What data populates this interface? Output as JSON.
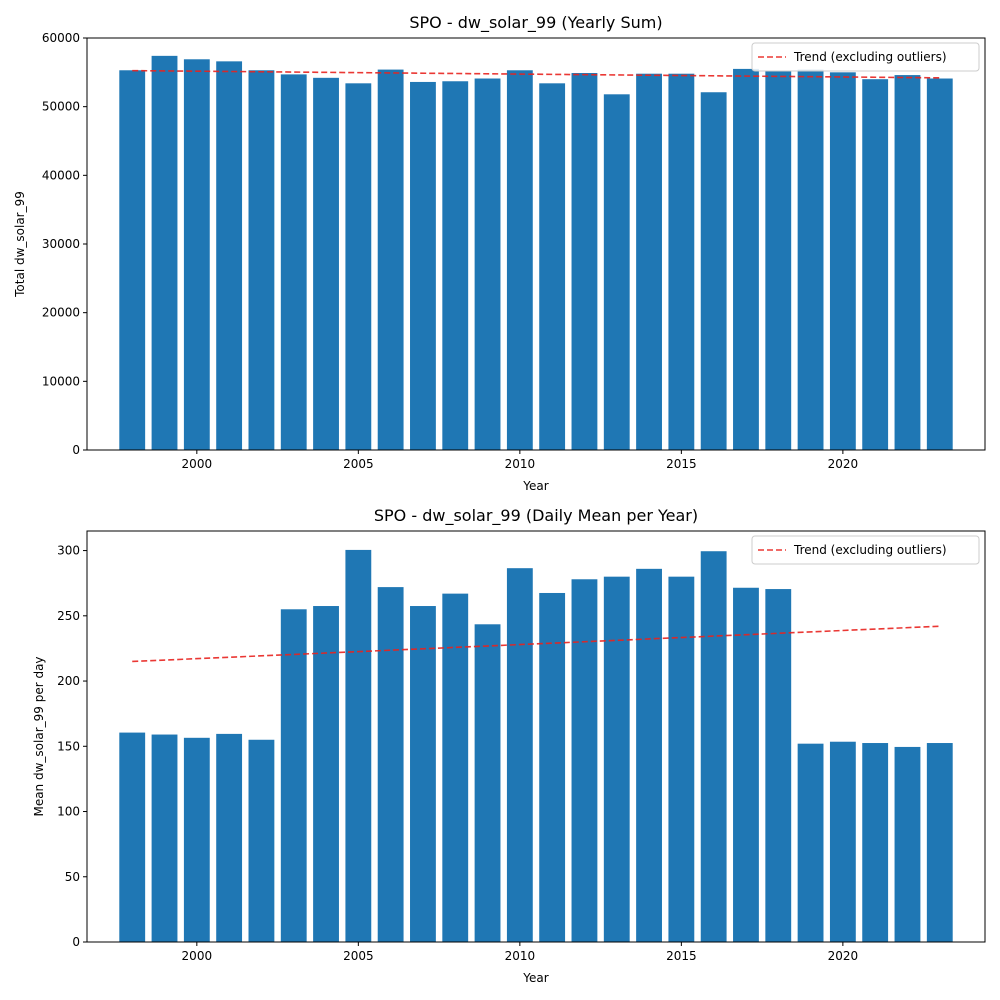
{
  "chart_data": [
    {
      "type": "bar",
      "title": "SPO - dw_solar_99 (Yearly Sum)",
      "xlabel": "Year",
      "ylabel": "Total dw_solar_99",
      "xlim": [
        1996.6,
        2024.4
      ],
      "ylim": [
        0,
        60000
      ],
      "xticks": [
        2000,
        2005,
        2010,
        2015,
        2020
      ],
      "yticks": [
        0,
        10000,
        20000,
        30000,
        40000,
        50000,
        60000
      ],
      "grid": false,
      "bar_color": "#1f77b4",
      "x": [
        1998,
        1999,
        2000,
        2001,
        2002,
        2003,
        2004,
        2005,
        2006,
        2007,
        2008,
        2009,
        2010,
        2011,
        2012,
        2013,
        2014,
        2015,
        2016,
        2017,
        2018,
        2019,
        2020,
        2021,
        2022,
        2023
      ],
      "values": [
        55300,
        57400,
        56900,
        56600,
        55300,
        54700,
        54200,
        53400,
        55400,
        53600,
        53700,
        54100,
        55300,
        53400,
        54900,
        51800,
        54800,
        54800,
        52100,
        55500,
        55200,
        55400,
        55000,
        54000,
        54600,
        54100
      ],
      "trend": {
        "label": "Trend (excluding outliers)",
        "color": "#e8231f",
        "style": "dashed",
        "start": [
          1998,
          55250
        ],
        "end": [
          2023,
          54200
        ]
      },
      "legend": {
        "placement": "upper right",
        "entries": [
          "Trend (excluding outliers)"
        ]
      }
    },
    {
      "type": "bar",
      "title": "SPO - dw_solar_99 (Daily Mean per Year)",
      "xlabel": "Year",
      "ylabel": "Mean dw_solar_99 per day",
      "xlim": [
        1996.6,
        2024.4
      ],
      "ylim": [
        0,
        315
      ],
      "xticks": [
        2000,
        2005,
        2010,
        2015,
        2020
      ],
      "yticks": [
        0,
        50,
        100,
        150,
        200,
        250,
        300
      ],
      "grid": false,
      "bar_color": "#1f77b4",
      "x": [
        1998,
        1999,
        2000,
        2001,
        2002,
        2003,
        2004,
        2005,
        2006,
        2007,
        2008,
        2009,
        2010,
        2011,
        2012,
        2013,
        2014,
        2015,
        2016,
        2017,
        2018,
        2019,
        2020,
        2021,
        2022,
        2023
      ],
      "values": [
        160.5,
        159,
        156.5,
        159.5,
        155,
        255,
        257.5,
        300.5,
        272,
        257.5,
        267,
        243.5,
        286.5,
        267.5,
        278,
        280,
        286,
        280,
        299.5,
        271.5,
        270.5,
        152,
        153.5,
        152.5,
        149.5,
        152.5
      ],
      "trend": {
        "label": "Trend (excluding outliers)",
        "color": "#e8231f",
        "style": "dashed",
        "start": [
          1998,
          215
        ],
        "end": [
          2023,
          242
        ]
      },
      "legend": {
        "placement": "upper right",
        "entries": [
          "Trend (excluding outliers)"
        ]
      }
    }
  ]
}
